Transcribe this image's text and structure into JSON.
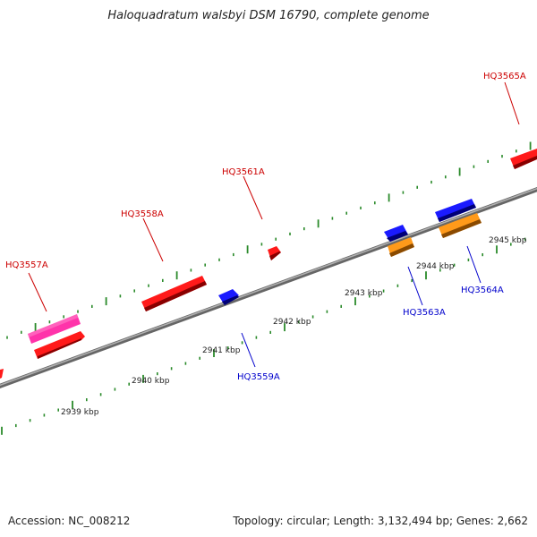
{
  "header": {
    "title": "Haloquadratum walsbyi DSM 16790, complete genome"
  },
  "footer": {
    "accession": "Accession: NC_008212",
    "summary": "Topology: circular; Length: 3,132,494 bp; Genes: 2,662"
  },
  "colors": {
    "backbone": "#808080",
    "ticks": "#2a8a2a",
    "forward_label": "#cc0000",
    "reverse_label": "#0000cc",
    "red": "#ff1a1a",
    "pink": "#ff33aa",
    "blue": "#1a1aff",
    "orange": "#ff9a1a"
  },
  "ruler": {
    "labels": [
      "2939 kbp",
      "2940 kbp",
      "2941 kbp",
      "2942 kbp",
      "2943 kbp",
      "2944 kbp",
      "2945 kbp"
    ]
  },
  "gene_labels": {
    "forward": [
      "HQ3557A",
      "HQ3558A",
      "HQ3561A",
      "HQ3565A"
    ],
    "reverse": [
      "HQ3559A",
      "HQ3563A",
      "HQ3564A"
    ]
  }
}
